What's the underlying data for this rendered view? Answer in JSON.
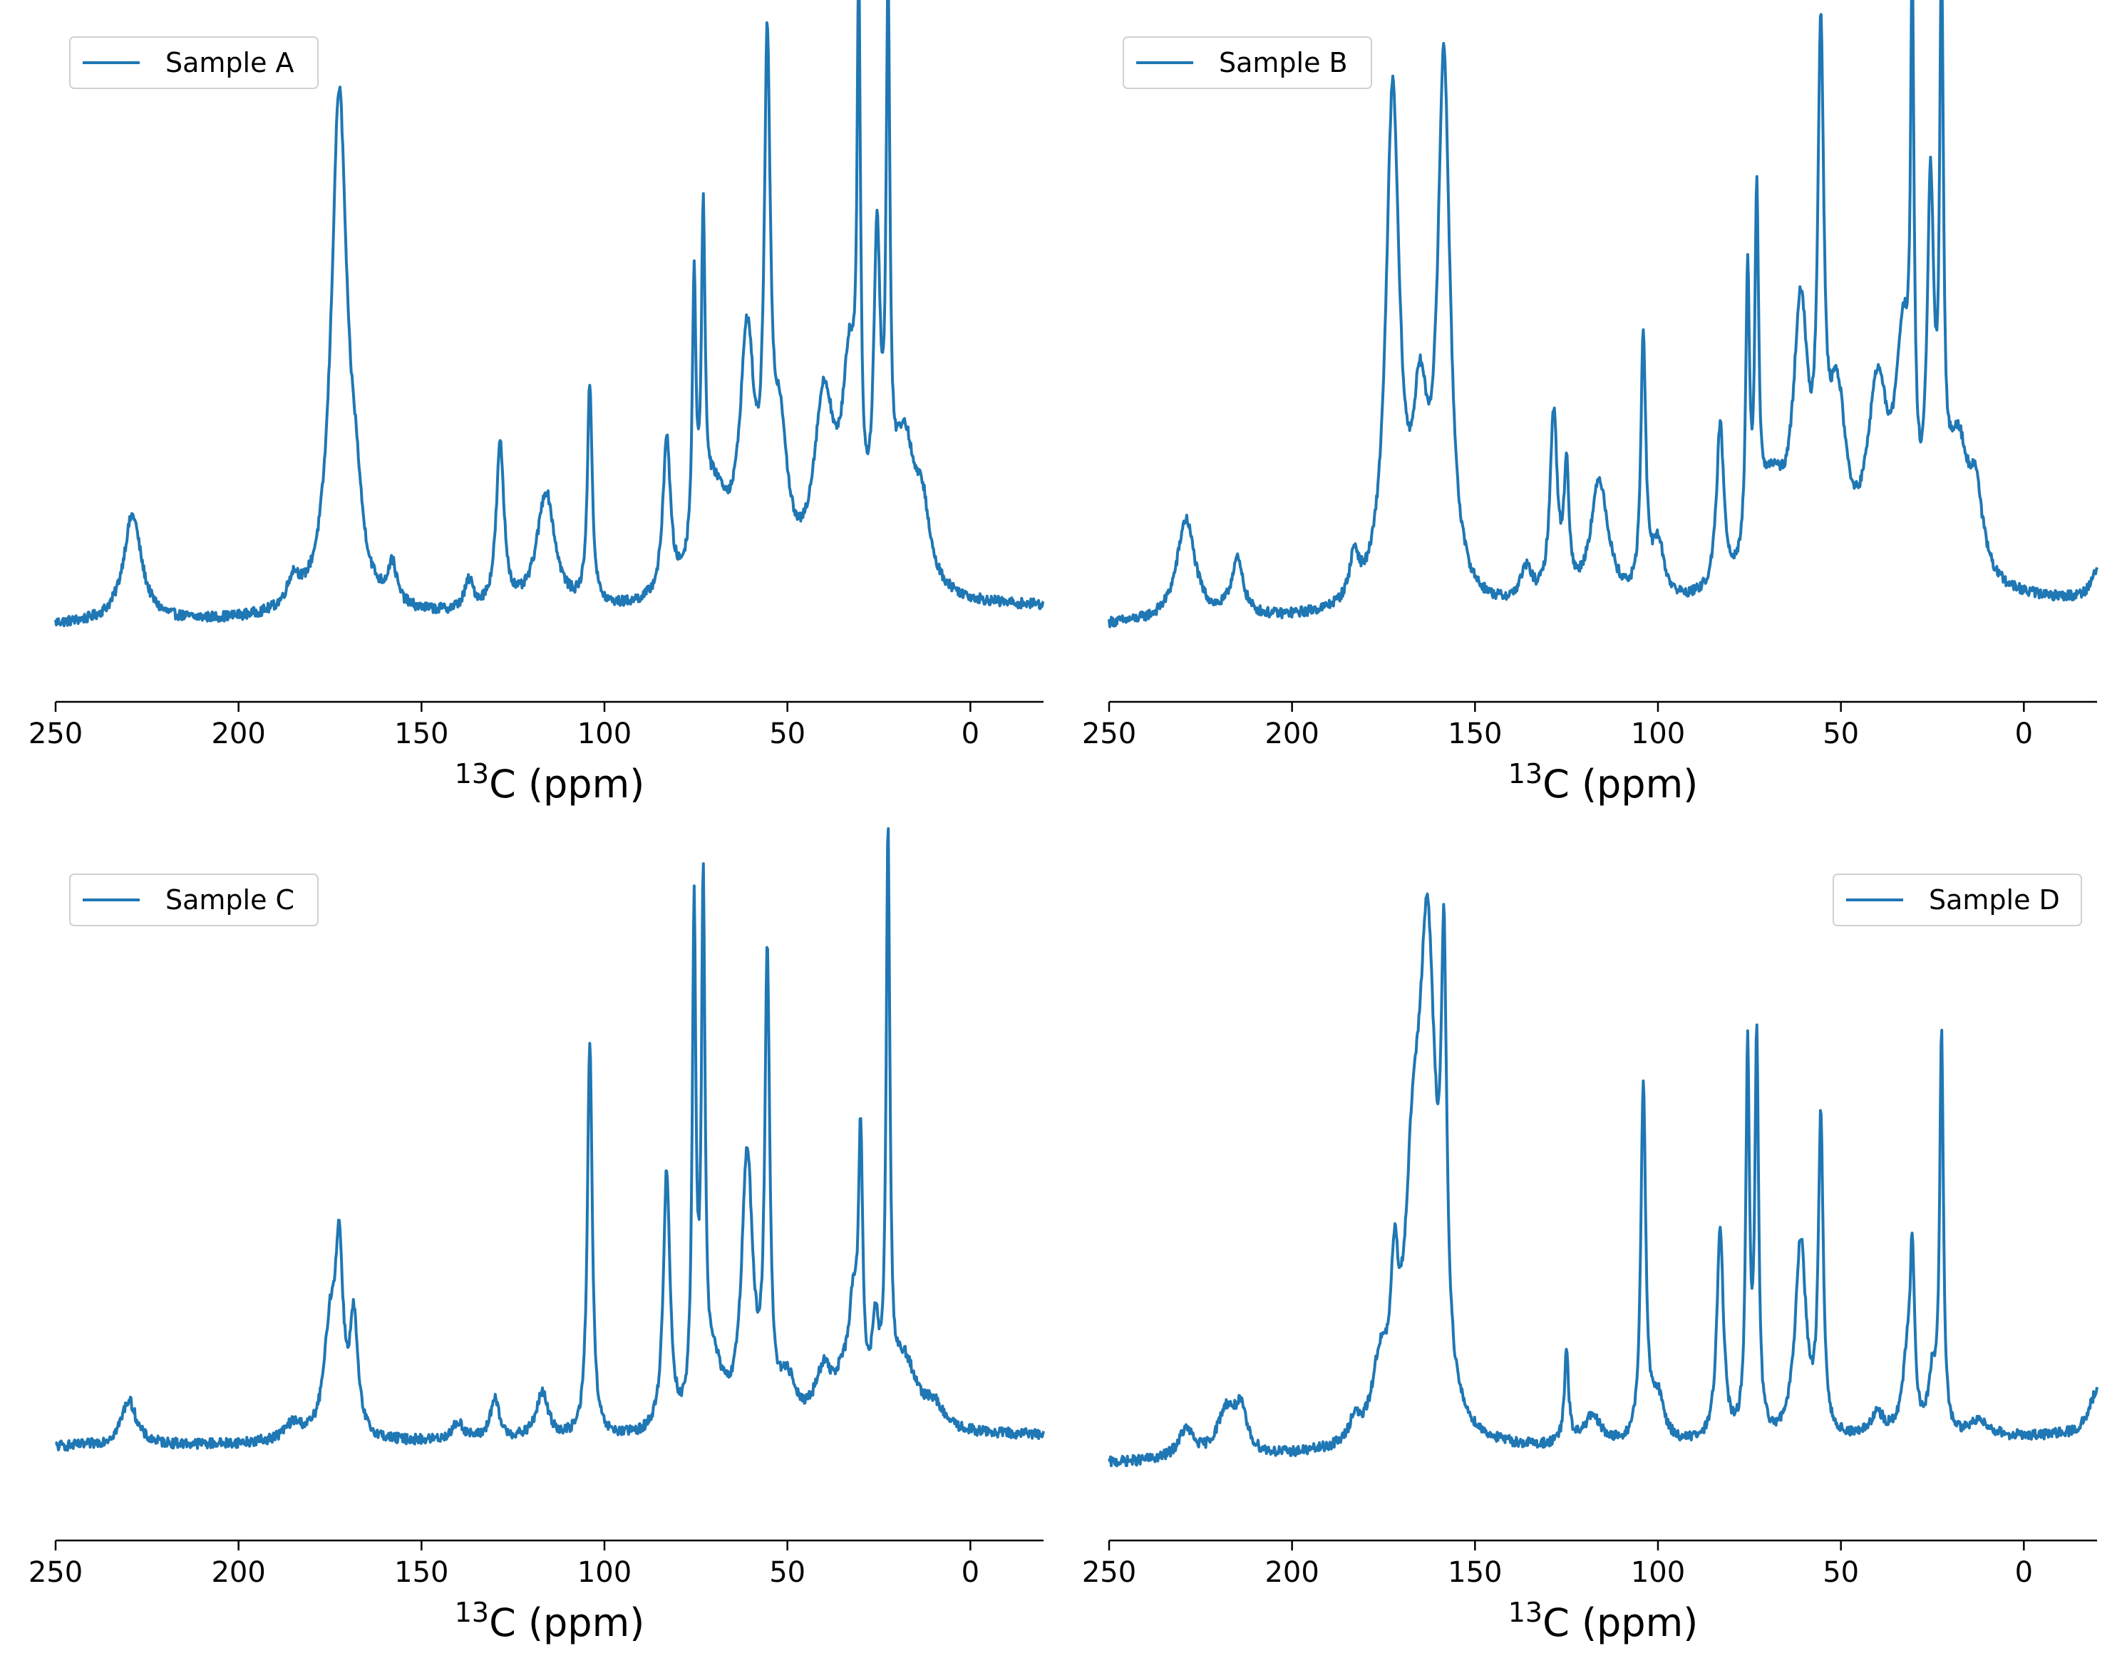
{
  "chart_data": [
    {
      "type": "line",
      "title": "",
      "xlabel_sup": "13",
      "xlabel": "C (ppm)",
      "ylabel": "",
      "xlim": [
        250,
        -20
      ],
      "ylim": [
        -0.05,
        1.05
      ],
      "x_ticks": [
        250,
        200,
        150,
        100,
        50,
        0
      ],
      "grid": false,
      "legend_position": "top-left",
      "series": [
        {
          "name": "Sample A",
          "color": "#1f77b4",
          "baseline": 0.03,
          "tilt": [
            -0.02,
            0.01
          ],
          "peaks": [
            {
              "x": 229,
              "h": 0.19,
              "w": 3.0
            },
            {
              "x": 185,
              "h": 0.05,
              "w": 2.0
            },
            {
              "x": 172.5,
              "h": 0.92,
              "w": 2.6
            },
            {
              "x": 168,
              "h": 0.12,
              "w": 2.0
            },
            {
              "x": 158,
              "h": 0.07,
              "w": 1.5
            },
            {
              "x": 137,
              "h": 0.05,
              "w": 1.5
            },
            {
              "x": 128.5,
              "h": 0.29,
              "w": 1.3
            },
            {
              "x": 116,
              "h": 0.21,
              "w": 3.0
            },
            {
              "x": 104,
              "h": 0.39,
              "w": 0.8
            },
            {
              "x": 83,
              "h": 0.28,
              "w": 1.2
            },
            {
              "x": 75.5,
              "h": 0.48,
              "w": 0.6
            },
            {
              "x": 73,
              "h": 0.55,
              "w": 0.6
            },
            {
              "x": 70,
              "h": 0.18,
              "w": 5.0
            },
            {
              "x": 61,
              "h": 0.42,
              "w": 2.4
            },
            {
              "x": 55.5,
              "h": 0.85,
              "w": 1.0
            },
            {
              "x": 52,
              "h": 0.25,
              "w": 2.5
            },
            {
              "x": 40,
              "h": 0.33,
              "w": 3.5
            },
            {
              "x": 33,
              "h": 0.35,
              "w": 2.5
            },
            {
              "x": 30.5,
              "h": 0.88,
              "w": 0.55
            },
            {
              "x": 25.5,
              "h": 0.54,
              "w": 1.1
            },
            {
              "x": 22.5,
              "h": 0.92,
              "w": 0.6
            },
            {
              "x": 18,
              "h": 0.27,
              "w": 4.0
            },
            {
              "x": 13,
              "h": 0.1,
              "w": 2.0
            }
          ]
        }
      ]
    },
    {
      "type": "line",
      "title": "",
      "xlabel_sup": "13",
      "xlabel": "C (ppm)",
      "ylabel": "",
      "xlim": [
        250,
        -20
      ],
      "ylim": [
        -0.05,
        1.05
      ],
      "x_ticks": [
        250,
        200,
        150,
        100,
        50,
        0
      ],
      "grid": false,
      "legend_position": "top-left",
      "series": [
        {
          "name": "Sample B",
          "color": "#1f77b4",
          "baseline": 0.02,
          "tilt": [
            -0.01,
            0.03
          ],
          "peaks": [
            {
              "x": 229,
              "h": 0.18,
              "w": 3.0
            },
            {
              "x": 215,
              "h": 0.1,
              "w": 2.0
            },
            {
              "x": 183,
              "h": 0.08,
              "w": 1.5
            },
            {
              "x": 172.5,
              "h": 0.9,
              "w": 2.2
            },
            {
              "x": 165,
              "h": 0.3,
              "w": 2.5
            },
            {
              "x": 158.5,
              "h": 0.95,
              "w": 2.0
            },
            {
              "x": 136,
              "h": 0.06,
              "w": 2.0
            },
            {
              "x": 128.5,
              "h": 0.33,
              "w": 1.2
            },
            {
              "x": 125,
              "h": 0.22,
              "w": 0.8
            },
            {
              "x": 116,
              "h": 0.22,
              "w": 3.0
            },
            {
              "x": 104,
              "h": 0.46,
              "w": 0.8
            },
            {
              "x": 100,
              "h": 0.1,
              "w": 2.0
            },
            {
              "x": 83,
              "h": 0.29,
              "w": 1.2
            },
            {
              "x": 75.5,
              "h": 0.5,
              "w": 0.6
            },
            {
              "x": 73,
              "h": 0.6,
              "w": 0.6
            },
            {
              "x": 69,
              "h": 0.18,
              "w": 5.0
            },
            {
              "x": 61,
              "h": 0.45,
              "w": 2.4
            },
            {
              "x": 55.5,
              "h": 0.85,
              "w": 1.0
            },
            {
              "x": 51,
              "h": 0.3,
              "w": 3.0
            },
            {
              "x": 40,
              "h": 0.33,
              "w": 3.5
            },
            {
              "x": 33,
              "h": 0.38,
              "w": 2.5
            },
            {
              "x": 30.5,
              "h": 0.86,
              "w": 0.55
            },
            {
              "x": 25.5,
              "h": 0.62,
              "w": 1.1
            },
            {
              "x": 22.5,
              "h": 0.95,
              "w": 0.6
            },
            {
              "x": 18,
              "h": 0.25,
              "w": 4.0
            },
            {
              "x": 13,
              "h": 0.12,
              "w": 2.0
            },
            {
              "x": -20,
              "h": 0.05,
              "w": 2.0
            }
          ]
        }
      ]
    },
    {
      "type": "line",
      "title": "",
      "xlabel_sup": "13",
      "xlabel": "C (ppm)",
      "ylabel": "",
      "xlim": [
        250,
        -20
      ],
      "ylim": [
        -0.05,
        1.05
      ],
      "x_ticks": [
        250,
        200,
        150,
        100,
        50,
        0
      ],
      "grid": false,
      "legend_position": "top-left",
      "series": [
        {
          "name": "Sample C",
          "color": "#1f77b4",
          "baseline": 0.02,
          "tilt": [
            0.02,
            0.04
          ],
          "peaks": [
            {
              "x": 230,
              "h": 0.08,
              "w": 2.5
            },
            {
              "x": 185,
              "h": 0.03,
              "w": 3.0
            },
            {
              "x": 175,
              "h": 0.18,
              "w": 2.0
            },
            {
              "x": 172.5,
              "h": 0.3,
              "w": 1.3
            },
            {
              "x": 168.5,
              "h": 0.2,
              "w": 1.3
            },
            {
              "x": 140,
              "h": 0.03,
              "w": 2.0
            },
            {
              "x": 130,
              "h": 0.07,
              "w": 1.5
            },
            {
              "x": 117,
              "h": 0.08,
              "w": 2.0
            },
            {
              "x": 104,
              "h": 0.7,
              "w": 0.8
            },
            {
              "x": 83,
              "h": 0.46,
              "w": 1.1
            },
            {
              "x": 75.5,
              "h": 0.88,
              "w": 0.6
            },
            {
              "x": 73,
              "h": 0.9,
              "w": 0.6
            },
            {
              "x": 70,
              "h": 0.1,
              "w": 3.0
            },
            {
              "x": 61,
              "h": 0.48,
              "w": 1.8
            },
            {
              "x": 55.5,
              "h": 0.8,
              "w": 0.8
            },
            {
              "x": 50,
              "h": 0.08,
              "w": 3.0
            },
            {
              "x": 40,
              "h": 0.1,
              "w": 3.0
            },
            {
              "x": 35,
              "h": 0.06,
              "w": 2.0
            },
            {
              "x": 32,
              "h": 0.18,
              "w": 1.5
            },
            {
              "x": 30,
              "h": 0.45,
              "w": 0.7
            },
            {
              "x": 26,
              "h": 0.15,
              "w": 1.2
            },
            {
              "x": 22.5,
              "h": 1.0,
              "w": 0.6
            },
            {
              "x": 18,
              "h": 0.12,
              "w": 4.0
            },
            {
              "x": 10,
              "h": 0.04,
              "w": 3.0
            }
          ]
        }
      ]
    },
    {
      "type": "line",
      "title": "",
      "xlabel_sup": "13",
      "xlabel": "C (ppm)",
      "ylabel": "",
      "xlim": [
        250,
        -20
      ],
      "ylim": [
        -0.05,
        1.05
      ],
      "x_ticks": [
        250,
        200,
        150,
        100,
        50,
        0
      ],
      "grid": false,
      "legend_position": "top-right",
      "series": [
        {
          "name": "Sample D",
          "color": "#1f77b4",
          "baseline": 0.02,
          "tilt": [
            -0.01,
            0.04
          ],
          "peaks": [
            {
              "x": 229,
              "h": 0.05,
              "w": 2.5
            },
            {
              "x": 218,
              "h": 0.08,
              "w": 3.0
            },
            {
              "x": 214,
              "h": 0.07,
              "w": 2.0
            },
            {
              "x": 183,
              "h": 0.04,
              "w": 1.5
            },
            {
              "x": 176,
              "h": 0.12,
              "w": 2.5
            },
            {
              "x": 172,
              "h": 0.22,
              "w": 1.2
            },
            {
              "x": 167,
              "h": 0.35,
              "w": 2.5
            },
            {
              "x": 163,
              "h": 0.85,
              "w": 2.8
            },
            {
              "x": 158.5,
              "h": 0.7,
              "w": 0.9
            },
            {
              "x": 125,
              "h": 0.16,
              "w": 0.7
            },
            {
              "x": 118,
              "h": 0.05,
              "w": 3.0
            },
            {
              "x": 104,
              "h": 0.63,
              "w": 0.8
            },
            {
              "x": 100,
              "h": 0.08,
              "w": 2.0
            },
            {
              "x": 83,
              "h": 0.37,
              "w": 1.1
            },
            {
              "x": 75.5,
              "h": 0.68,
              "w": 0.6
            },
            {
              "x": 73,
              "h": 0.7,
              "w": 0.6
            },
            {
              "x": 61,
              "h": 0.35,
              "w": 1.8
            },
            {
              "x": 55.5,
              "h": 0.55,
              "w": 0.8
            },
            {
              "x": 40,
              "h": 0.04,
              "w": 2.5
            },
            {
              "x": 32,
              "h": 0.12,
              "w": 1.5
            },
            {
              "x": 30.5,
              "h": 0.3,
              "w": 0.7
            },
            {
              "x": 25,
              "h": 0.1,
              "w": 1.2
            },
            {
              "x": 22.5,
              "h": 0.7,
              "w": 0.6
            },
            {
              "x": 12,
              "h": 0.03,
              "w": 3.0
            },
            {
              "x": -20,
              "h": 0.08,
              "w": 2.5
            }
          ]
        }
      ]
    }
  ]
}
